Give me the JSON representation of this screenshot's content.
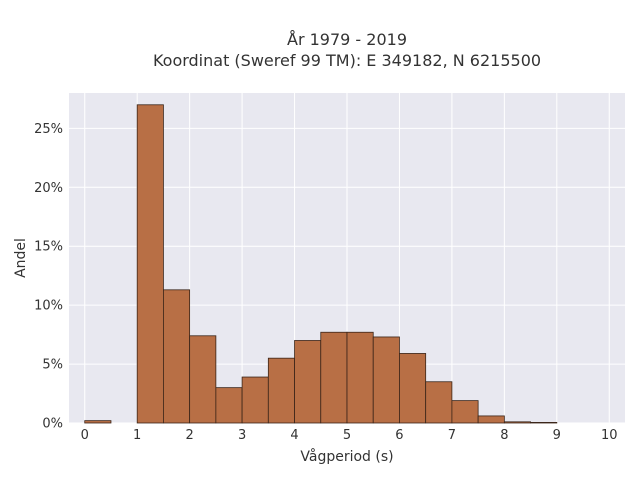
{
  "chart_data": {
    "type": "bar",
    "title_line1": "År 1979 - 2019",
    "title_line2": "Koordinat (Sweref 99 TM): E 349182, N 6215500",
    "xlabel": "Vågperiod (s)",
    "ylabel": "Andel",
    "x_ticks": [
      "0",
      "1",
      "2",
      "3",
      "4",
      "5",
      "6",
      "7",
      "8",
      "9",
      "10"
    ],
    "y_ticks": [
      "0%",
      "5%",
      "10%",
      "15%",
      "20%",
      "25%"
    ],
    "xlim": [
      -0.3,
      10.3
    ],
    "ylim": [
      0,
      28
    ],
    "grid": true,
    "bar_color": "#b86f45",
    "edge_color": "#3a2418",
    "plot_bg": "#e8e8f0",
    "bins": [
      {
        "x0": 0.0,
        "x1": 0.5,
        "value": 0.2
      },
      {
        "x0": 0.5,
        "x1": 1.0,
        "value": 0.0
      },
      {
        "x0": 1.0,
        "x1": 1.5,
        "value": 27.0
      },
      {
        "x0": 1.5,
        "x1": 2.0,
        "value": 11.3
      },
      {
        "x0": 2.0,
        "x1": 2.5,
        "value": 7.4
      },
      {
        "x0": 2.5,
        "x1": 3.0,
        "value": 3.0
      },
      {
        "x0": 3.0,
        "x1": 3.5,
        "value": 3.9
      },
      {
        "x0": 3.5,
        "x1": 4.0,
        "value": 5.5
      },
      {
        "x0": 4.0,
        "x1": 4.5,
        "value": 7.0
      },
      {
        "x0": 4.5,
        "x1": 5.0,
        "value": 7.7
      },
      {
        "x0": 5.0,
        "x1": 5.5,
        "value": 7.7
      },
      {
        "x0": 5.5,
        "x1": 6.0,
        "value": 7.3
      },
      {
        "x0": 6.0,
        "x1": 6.5,
        "value": 5.9
      },
      {
        "x0": 6.5,
        "x1": 7.0,
        "value": 3.5
      },
      {
        "x0": 7.0,
        "x1": 7.5,
        "value": 1.9
      },
      {
        "x0": 7.5,
        "x1": 8.0,
        "value": 0.6
      },
      {
        "x0": 8.0,
        "x1": 8.5,
        "value": 0.1
      },
      {
        "x0": 8.5,
        "x1": 9.0,
        "value": 0.05
      }
    ]
  }
}
